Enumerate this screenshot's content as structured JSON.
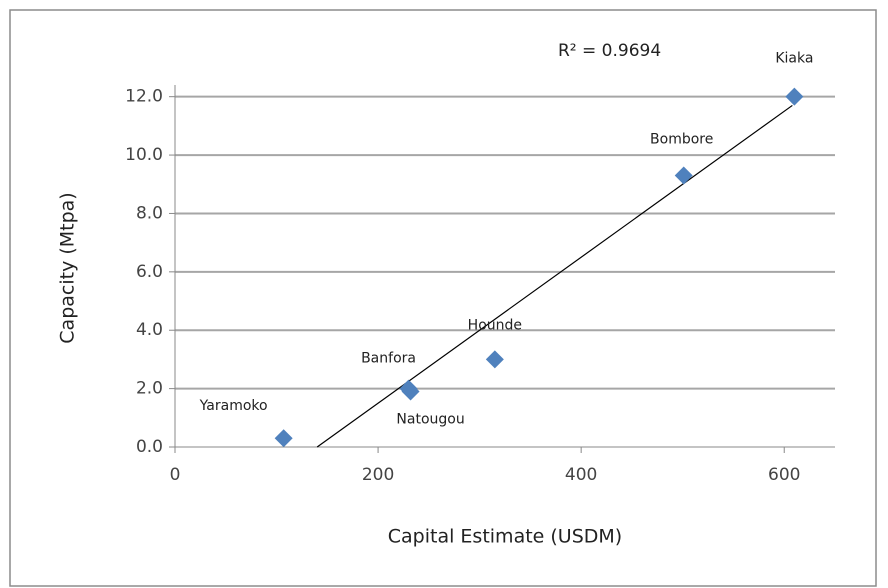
{
  "chart_data": {
    "type": "scatter",
    "x_label": "Capital Estimate (USDM)",
    "y_label": "Capacity (Mtpa)",
    "annotation": "R² = 0.9694",
    "labels": [
      "Yaramoko",
      "Banfora",
      "Natougou",
      "Hounde",
      "Bombore",
      "Kiaka"
    ],
    "x": [
      107,
      230,
      232,
      315,
      501,
      610
    ],
    "values": [
      0.3,
      2.0,
      1.9,
      3.0,
      9.3,
      12.0
    ],
    "color": "#4f81bd",
    "trendline": {
      "x": [
        140,
        608
      ],
      "values": [
        0,
        11.7
      ],
      "color": "#000000"
    },
    "xlim": [
      0,
      650
    ],
    "xticks": [
      0,
      200,
      400,
      600
    ],
    "ylim": [
      0,
      12.4
    ],
    "yticks": [
      {
        "value": 0,
        "label": "0.0"
      },
      {
        "value": 2,
        "label": "2.0"
      },
      {
        "value": 4,
        "label": "4.0"
      },
      {
        "value": 6,
        "label": "6.0"
      },
      {
        "value": 8,
        "label": "8.0"
      },
      {
        "value": 10,
        "label": "10.0"
      },
      {
        "value": 12,
        "label": "12.0"
      }
    ],
    "grid": true
  }
}
